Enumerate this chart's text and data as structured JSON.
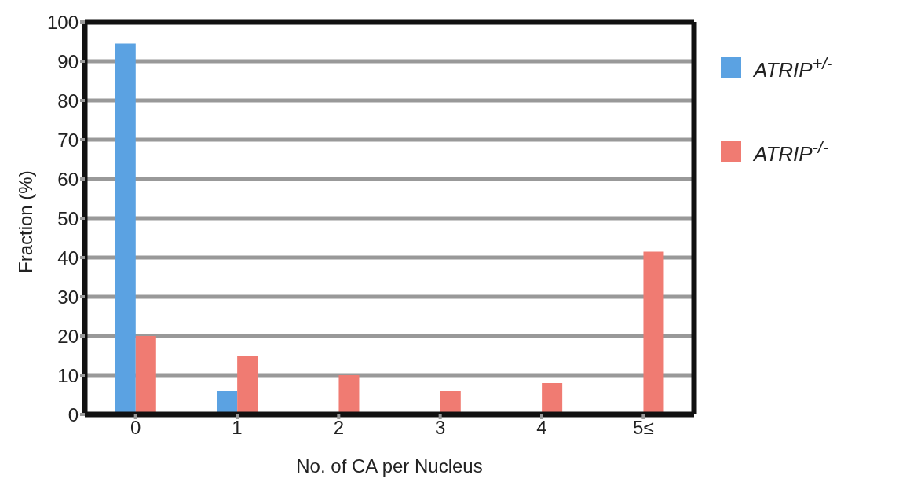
{
  "chart_data": {
    "type": "bar",
    "xlabel": "No. of CA per Nucleus",
    "ylabel": "Fraction (%)",
    "categories": [
      "0",
      "1",
      "2",
      "3",
      "4",
      "5≤"
    ],
    "series": [
      {
        "name": "ATRIP$^{+/-}$",
        "color": "#5ba2e2",
        "values": [
          94.5,
          6,
          0,
          0,
          0,
          0
        ]
      },
      {
        "name": "ATRIP$^{-/-}$",
        "color": "#f07b72",
        "values": [
          20,
          15,
          10,
          6,
          8,
          41.5
        ]
      }
    ],
    "ylim": [
      0,
      100
    ],
    "yticks": [
      0,
      10,
      20,
      30,
      40,
      50,
      60,
      70,
      80,
      90,
      100
    ],
    "grid": "y",
    "legend": "right"
  }
}
